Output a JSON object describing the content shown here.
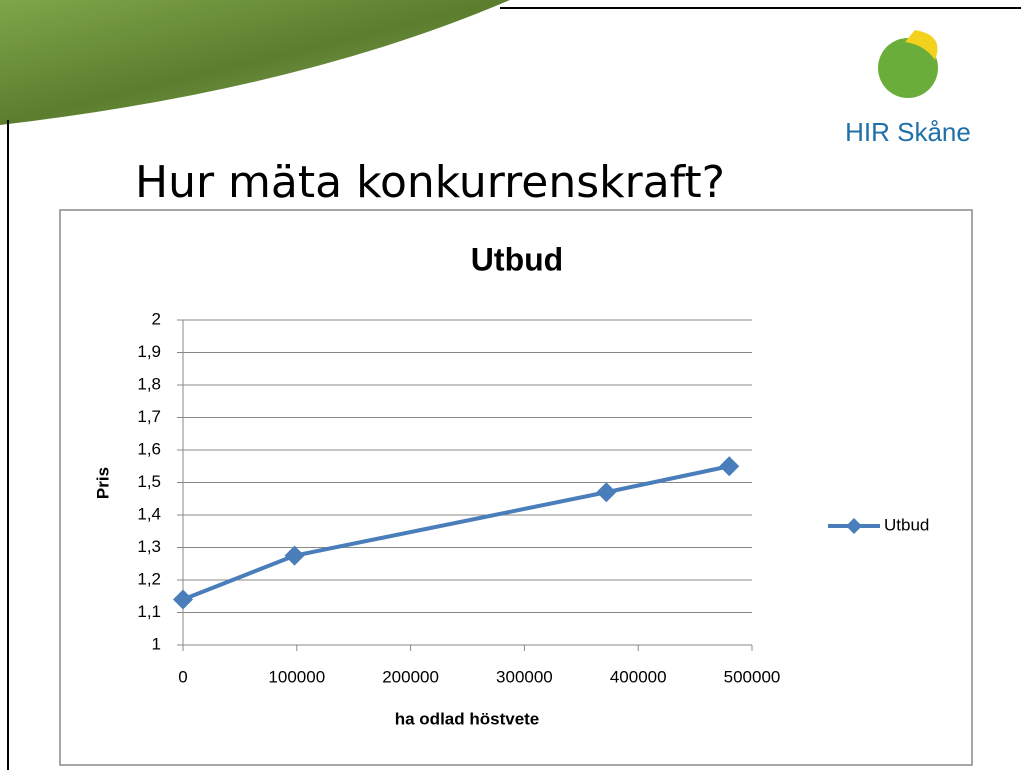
{
  "slide": {
    "title": "Hur mäta konkurrenskraft?",
    "logo": "HIR Skåne"
  },
  "chart_data": {
    "type": "line",
    "title": "Utbud",
    "x_label": "ha odlad höstvete",
    "y_label": "Pris",
    "x": [
      0,
      98000,
      372000,
      480000
    ],
    "series": [
      {
        "name": "Utbud",
        "color": "#4a7ebb",
        "values": [
          1.14,
          1.275,
          1.47,
          1.55
        ]
      }
    ],
    "xlim": [
      0,
      500000
    ],
    "xticks": [
      0,
      100000,
      200000,
      300000,
      400000,
      500000
    ],
    "ylim": [
      1,
      2
    ],
    "yticks": [
      1,
      {
        "value": 1.1,
        "label": "1,1"
      },
      {
        "value": 1.2,
        "label": "1,2"
      },
      {
        "value": 1.3,
        "label": "1,3"
      },
      {
        "value": 1.4,
        "label": "1,4"
      },
      {
        "value": 1.5,
        "label": "1,5"
      },
      {
        "value": 1.6,
        "label": "1,6"
      },
      {
        "value": 1.7,
        "label": "1,7"
      },
      {
        "value": 1.8,
        "label": "1,8"
      },
      {
        "value": 1.9,
        "label": "1,9"
      },
      2
    ],
    "grid": true,
    "legend": "right"
  }
}
